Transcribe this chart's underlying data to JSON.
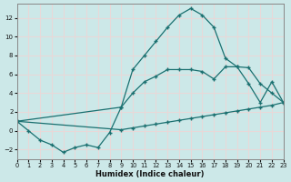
{
  "xlabel": "Humidex (Indice chaleur)",
  "bg_color": "#cce8e8",
  "grid_color": "#d4e8e8",
  "line_color": "#1a7070",
  "xlim": [
    0,
    23
  ],
  "ylim": [
    -3,
    13.5
  ],
  "yticks": [
    -2,
    0,
    2,
    4,
    6,
    8,
    10,
    12
  ],
  "xticks": [
    0,
    1,
    2,
    3,
    4,
    5,
    6,
    7,
    8,
    9,
    10,
    11,
    12,
    13,
    14,
    15,
    16,
    17,
    18,
    19,
    20,
    21,
    22,
    23
  ],
  "curve_main_x": [
    0,
    1,
    2,
    3,
    4,
    5,
    6,
    7,
    8,
    9,
    10,
    11,
    12,
    13,
    14,
    15,
    16,
    17,
    18,
    19,
    20,
    21,
    22,
    23
  ],
  "curve_main_y": [
    1,
    0,
    -1.0,
    -1.5,
    -2.3,
    -1.8,
    -1.5,
    -1.8,
    -0.2,
    2.5,
    6.5,
    8.0,
    9.5,
    11.0,
    12.3,
    13.0,
    12.3,
    11.0,
    7.7,
    6.8,
    5.0,
    3.0,
    5.2,
    3.0
  ],
  "curve_mid_x": [
    0,
    9,
    10,
    11,
    12,
    13,
    14,
    15,
    16,
    17,
    18,
    19,
    20,
    21,
    22,
    23
  ],
  "curve_mid_y": [
    1,
    2.5,
    4.0,
    5.2,
    5.8,
    6.5,
    6.5,
    6.5,
    6.3,
    5.5,
    6.8,
    6.8,
    6.7,
    5.0,
    4.0,
    3.0
  ],
  "curve_low_x": [
    0,
    9,
    10,
    11,
    12,
    13,
    14,
    15,
    16,
    17,
    18,
    19,
    20,
    21,
    22,
    23
  ],
  "curve_low_y": [
    1,
    0.1,
    0.3,
    0.5,
    0.7,
    0.9,
    1.1,
    1.3,
    1.5,
    1.7,
    1.9,
    2.1,
    2.3,
    2.5,
    2.7,
    3.0
  ]
}
